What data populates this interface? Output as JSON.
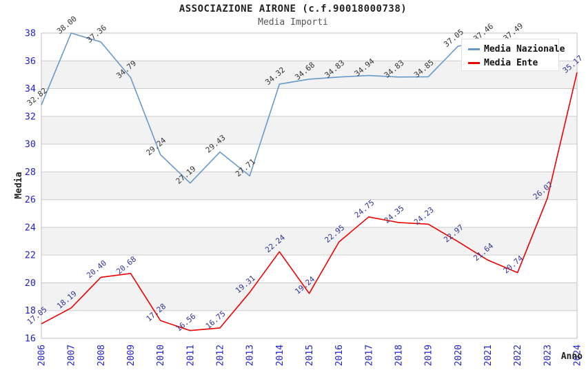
{
  "page": {
    "background": "#ffffff"
  },
  "chart_data": {
    "type": "line",
    "title": "ASSOCIAZIONE AIRONE (c.f.90018000738)",
    "subtitle": "Media Importi",
    "xlabel": "Anno",
    "ylabel": "Media",
    "x": [
      2006,
      2007,
      2008,
      2009,
      2010,
      2011,
      2012,
      2013,
      2014,
      2015,
      2016,
      2017,
      2018,
      2019,
      2020,
      2021,
      2022,
      2023,
      2024
    ],
    "ylim": [
      16,
      38
    ],
    "ytick_step": 2,
    "grid": "horizontal-only",
    "gridline_color": "#cccccc",
    "plot_border_color": "#c0c0c0",
    "band_colors": [
      "#ffffff",
      "#f2f2f2"
    ],
    "axis_tick_color": "#2222cc",
    "legend_position": "top-right",
    "series": [
      {
        "name": "Media Nazionale",
        "color": "#6699cc",
        "label_color": "#333333",
        "values": [
          32.82,
          38.0,
          37.36,
          34.79,
          29.24,
          27.19,
          29.43,
          27.71,
          34.32,
          34.68,
          34.83,
          34.94,
          34.83,
          34.85,
          37.05,
          37.46,
          37.49,
          null,
          null
        ]
      },
      {
        "name": "Media Ente",
        "color": "#ee0000",
        "label_color": "#333399",
        "values": [
          17.05,
          18.19,
          20.4,
          20.68,
          17.28,
          16.56,
          16.75,
          19.31,
          22.24,
          19.24,
          22.95,
          24.75,
          24.35,
          24.23,
          22.97,
          21.64,
          20.74,
          26.07,
          35.17
        ]
      }
    ]
  }
}
